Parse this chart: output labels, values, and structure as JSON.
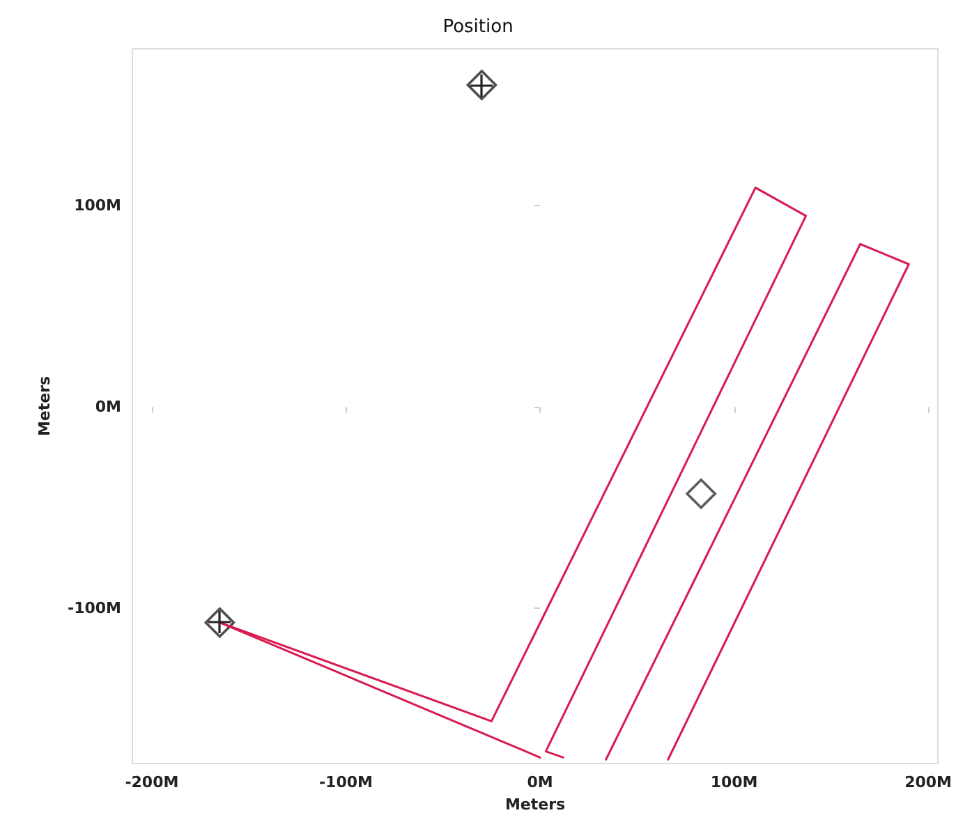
{
  "chart_data": {
    "type": "line",
    "title": "Position",
    "xlabel": "Meters",
    "ylabel": "Meters",
    "xlim": [
      -210,
      205
    ],
    "ylim": [
      -177,
      178
    ],
    "xticks": [
      {
        "value": -200,
        "label": "-200M"
      },
      {
        "value": -100,
        "label": "-100M"
      },
      {
        "value": 0,
        "label": "0M"
      },
      {
        "value": 100,
        "label": "100M"
      },
      {
        "value": 200,
        "label": "200M"
      }
    ],
    "yticks": [
      {
        "value": -100,
        "label": "-100M"
      },
      {
        "value": 0,
        "label": "0M"
      },
      {
        "value": 100,
        "label": "100M"
      }
    ],
    "grid": false,
    "marker": "none",
    "line_style": "solid",
    "series": [
      {
        "color": "#d81b50",
        "x": [
          -165,
          -25,
          111,
          137,
          3,
          12
        ],
        "values": [
          -107,
          -156,
          109,
          95,
          -171,
          -174
        ]
      },
      {
        "color": "#d81b50",
        "x": [
          -165,
          0
        ],
        "values": [
          -107,
          -174
        ]
      },
      {
        "color": "#d81b50",
        "x": [
          34,
          165,
          190,
          66
        ],
        "values": [
          -175,
          81,
          71,
          -175
        ]
      },
      {
        "type": "scatter",
        "marker": "diamond",
        "color": "#222222",
        "x": [
          -30,
          -165
        ],
        "values": [
          160,
          -107
        ]
      },
      {
        "type": "scatter",
        "marker": "diamond",
        "color": "#333333",
        "x": [
          83
        ],
        "values": [
          -43
        ]
      }
    ]
  }
}
